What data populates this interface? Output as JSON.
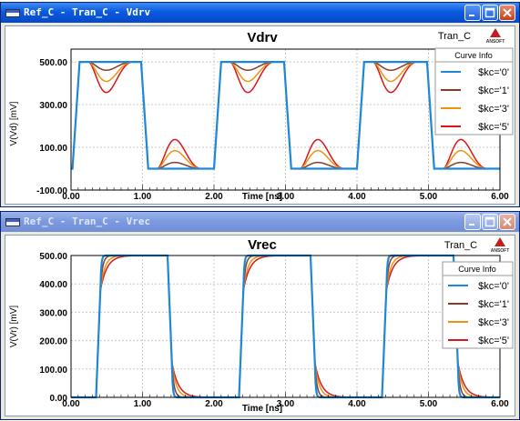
{
  "windows": [
    {
      "title": "Ref_C - Tran_C - Vdrv",
      "active": true,
      "chart_title": "Vdrv",
      "solution_label": "Tran_C",
      "logo_text": "ANSOFT",
      "legend_title": "Curve Info",
      "xlabel": "Time [ns]",
      "ylabel": "V(Vd) [mV]"
    },
    {
      "title": "Ref_C - Tran_C - Vrec",
      "active": false,
      "chart_title": "Vrec",
      "solution_label": "Tran_C",
      "logo_text": "ANSOFT",
      "legend_title": "Curve Info",
      "xlabel": "Time [ns]",
      "ylabel": "V(Vr) [mV]"
    }
  ],
  "chart_data": [
    {
      "type": "line",
      "title": "Vdrv",
      "xlabel": "Time [ns]",
      "ylabel": "V(Vd) [mV]",
      "xlim": [
        0,
        6
      ],
      "ylim": [
        -100,
        560
      ],
      "x_ticks": [
        "0.00",
        "1.00",
        "2.00",
        "3.00",
        "4.00",
        "5.00",
        "6.00"
      ],
      "y_ticks": [
        "-100.00",
        "100.00",
        "300.00",
        "500.00"
      ],
      "y_tick_values": [
        -100,
        100,
        300,
        500
      ],
      "grid": true,
      "legend_position": "top-right",
      "series": [
        {
          "name": "$kc='0'",
          "color": "#1e88d8",
          "dip": 0,
          "bump": 0
        },
        {
          "name": "$kc='1'",
          "color": "#8b3a2a",
          "dip": 60,
          "bump": 45
        },
        {
          "name": "$kc='3'",
          "color": "#f09010",
          "dip": 140,
          "bump": 130
        },
        {
          "name": "$kc='5'",
          "color": "#d81818",
          "dip": 220,
          "bump": 210
        }
      ]
    },
    {
      "type": "line",
      "title": "Vrec",
      "xlabel": "Time [ns]",
      "ylabel": "V(Vr) [mV]",
      "xlim": [
        0,
        6
      ],
      "ylim": [
        0,
        500
      ],
      "x_ticks": [
        "0.00",
        "1.00",
        "2.00",
        "3.00",
        "4.00",
        "5.00",
        "6.00"
      ],
      "y_ticks": [
        "0.00",
        "100.00",
        "200.00",
        "300.00",
        "400.00",
        "500.00"
      ],
      "y_tick_values": [
        0,
        100,
        200,
        300,
        400,
        500
      ],
      "grid": true,
      "legend_position": "top-right",
      "series": [
        {
          "name": "$kc='0'",
          "color": "#1e88d8",
          "tau": 0.012
        },
        {
          "name": "$kc='1'",
          "color": "#8b3a2a",
          "tau": 0.03
        },
        {
          "name": "$kc='3'",
          "color": "#f09010",
          "tau": 0.06
        },
        {
          "name": "$kc='5'",
          "color": "#d81818",
          "tau": 0.09
        }
      ]
    }
  ]
}
